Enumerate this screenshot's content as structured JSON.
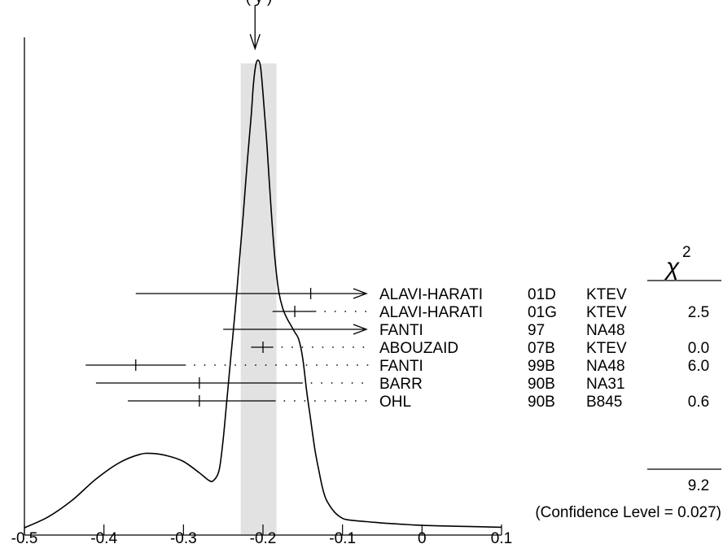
{
  "chart_data": {
    "type": "ideogram",
    "title": "",
    "xlabel": "",
    "ylabel": "",
    "x_range": [
      -0.5,
      0.1
    ],
    "x_ticks": [
      "-0.5",
      "-0.4",
      "-0.3",
      "-0.2",
      "-0.1",
      "0",
      "0.1"
    ],
    "top_label_fragment": "(   y   )",
    "weighted_average": -0.21,
    "average_band": [
      -0.228,
      -0.183
    ],
    "chi2_header": "χ",
    "chi2_superscript": "2",
    "measurements": [
      {
        "author": "ALAVI-HARATI",
        "year": "01D",
        "experiment": "KTEV",
        "value": -0.14,
        "low": -0.36,
        "high": null,
        "chi2": "",
        "arrow_right": true
      },
      {
        "author": "ALAVI-HARATI",
        "year": "01G",
        "experiment": "KTEV",
        "value": -0.16,
        "low": -0.188,
        "high": -0.133,
        "chi2": "2.5",
        "arrow_right": false
      },
      {
        "author": "FANTI",
        "year": "97",
        "experiment": "NA48",
        "value": null,
        "low": -0.25,
        "high": null,
        "chi2": "",
        "arrow_right": true
      },
      {
        "author": "ABOUZAID",
        "year": "07B",
        "experiment": "KTEV",
        "value": -0.2,
        "low": -0.215,
        "high": -0.187,
        "chi2": "0.0",
        "arrow_right": false
      },
      {
        "author": "FANTI",
        "year": "99B",
        "experiment": "NA48",
        "value": -0.36,
        "low": -0.423,
        "high": -0.297,
        "chi2": "6.0",
        "arrow_right": false
      },
      {
        "author": "BARR",
        "year": "90B",
        "experiment": "NA31",
        "value": -0.28,
        "low": -0.41,
        "high": -0.15,
        "chi2": "",
        "arrow_right": false
      },
      {
        "author": "OHL",
        "year": "90B",
        "experiment": "B845",
        "value": -0.28,
        "low": -0.37,
        "high": -0.184,
        "chi2": "0.6",
        "arrow_right": false
      }
    ],
    "chi2_total": "9.2",
    "confidence_level": "(Confidence Level = 0.027)",
    "ideogram_curve": [
      [
        -0.5,
        0.012
      ],
      [
        -0.47,
        0.035
      ],
      [
        -0.44,
        0.07
      ],
      [
        -0.41,
        0.115
      ],
      [
        -0.38,
        0.15
      ],
      [
        -0.355,
        0.167
      ],
      [
        -0.34,
        0.169
      ],
      [
        -0.32,
        0.164
      ],
      [
        -0.3,
        0.152
      ],
      [
        -0.28,
        0.128
      ],
      [
        -0.268,
        0.112
      ],
      [
        -0.262,
        0.112
      ],
      [
        -0.255,
        0.135
      ],
      [
        -0.25,
        0.2
      ],
      [
        -0.245,
        0.29
      ],
      [
        -0.24,
        0.38
      ],
      [
        -0.235,
        0.47
      ],
      [
        -0.23,
        0.57
      ],
      [
        -0.225,
        0.67
      ],
      [
        -0.22,
        0.78
      ],
      [
        -0.215,
        0.88
      ],
      [
        -0.212,
        0.95
      ],
      [
        -0.209,
        0.99
      ],
      [
        -0.206,
        1.0
      ],
      [
        -0.203,
        0.985
      ],
      [
        -0.2,
        0.93
      ],
      [
        -0.195,
        0.82
      ],
      [
        -0.19,
        0.69
      ],
      [
        -0.185,
        0.58
      ],
      [
        -0.18,
        0.51
      ],
      [
        -0.175,
        0.475
      ],
      [
        -0.17,
        0.455
      ],
      [
        -0.165,
        0.44
      ],
      [
        -0.16,
        0.425
      ],
      [
        -0.155,
        0.41
      ],
      [
        -0.15,
        0.37
      ],
      [
        -0.145,
        0.3
      ],
      [
        -0.14,
        0.24
      ],
      [
        -0.135,
        0.18
      ],
      [
        -0.13,
        0.135
      ],
      [
        -0.125,
        0.095
      ],
      [
        -0.12,
        0.07
      ],
      [
        -0.11,
        0.045
      ],
      [
        -0.1,
        0.032
      ],
      [
        -0.09,
        0.028
      ],
      [
        -0.07,
        0.025
      ],
      [
        -0.05,
        0.022
      ],
      [
        -0.03,
        0.02
      ],
      [
        0,
        0.017
      ],
      [
        0.05,
        0.015
      ],
      [
        0.1,
        0.013
      ]
    ]
  }
}
